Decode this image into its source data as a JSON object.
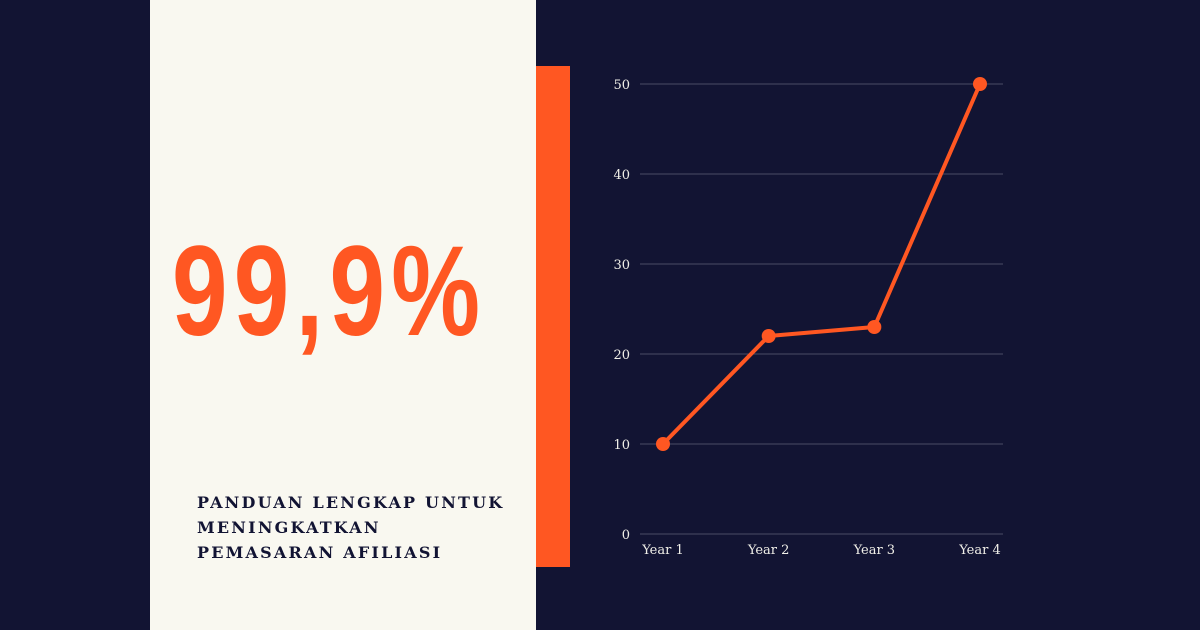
{
  "stat": {
    "value": "99,9%"
  },
  "subtitle": {
    "lines": [
      "PANDUAN LENGKAP UNTUK",
      "MENINGKATKAN",
      "PEMASARAN AFILIASI"
    ]
  },
  "colors": {
    "background": "#121433",
    "panel": "#f9f8f0",
    "accent": "#ff5722",
    "grid": "#4a4b66",
    "tick_text": "#f0efe8"
  },
  "chart_data": {
    "type": "line",
    "categories": [
      "Year 1",
      "Year 2",
      "Year 3",
      "Year 4"
    ],
    "series": [
      {
        "values": [
          10,
          22,
          23,
          50
        ]
      }
    ],
    "ylim": [
      0,
      50
    ],
    "yticks": [
      0,
      10,
      20,
      30,
      40,
      50
    ],
    "grid": true,
    "title": "",
    "xlabel": "",
    "ylabel": ""
  }
}
